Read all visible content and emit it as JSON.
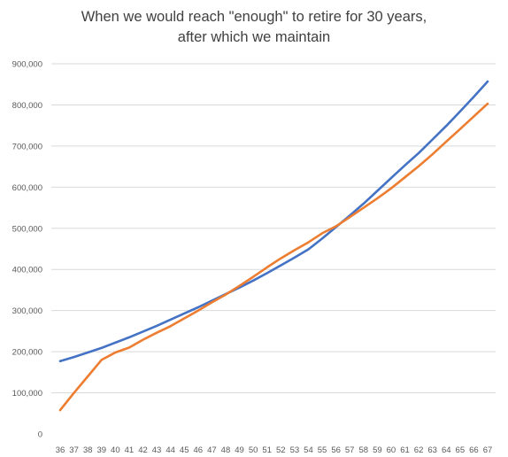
{
  "chart_data": {
    "type": "line",
    "title_lines": [
      "When we would reach \"enough\" to retire for 30 years,",
      "after which we maintain"
    ],
    "xlabel": "",
    "ylabel": "",
    "categories": [
      36,
      37,
      38,
      39,
      40,
      41,
      42,
      43,
      44,
      45,
      46,
      47,
      48,
      49,
      50,
      51,
      52,
      53,
      54,
      55,
      56,
      57,
      58,
      59,
      60,
      61,
      62,
      63,
      64,
      65,
      66,
      67
    ],
    "ylim": [
      0,
      900000
    ],
    "y_ticks": [
      0,
      100000,
      200000,
      300000,
      400000,
      500000,
      600000,
      700000,
      800000,
      900000
    ],
    "y_tick_labels": [
      "0",
      "100,000",
      "200,000",
      "300,000",
      "400,000",
      "500,000",
      "600,000",
      "700,000",
      "800,000",
      "900,000"
    ],
    "grid": true,
    "legend": "none",
    "series": [
      {
        "color": "#4472C4",
        "values": [
          177000,
          187000,
          198000,
          209000,
          222000,
          235000,
          249000,
          263000,
          278000,
          293000,
          308000,
          324000,
          340000,
          356000,
          373000,
          391000,
          410000,
          429000,
          449000,
          475000,
          503000,
          531000,
          560000,
          591000,
          622000,
          653000,
          683000,
          716000,
          749000,
          784000,
          820000,
          857000
        ]
      },
      {
        "color": "#ED7D31",
        "values": [
          58000,
          100000,
          140000,
          180000,
          198000,
          210000,
          229000,
          246000,
          262000,
          281000,
          300000,
          320000,
          339000,
          360000,
          382000,
          405000,
          427000,
          447000,
          466000,
          488000,
          505000,
          527000,
          550000,
          573000,
          597000,
          624000,
          651000,
          680000,
          711000,
          741000,
          772000,
          803000
        ]
      }
    ]
  }
}
